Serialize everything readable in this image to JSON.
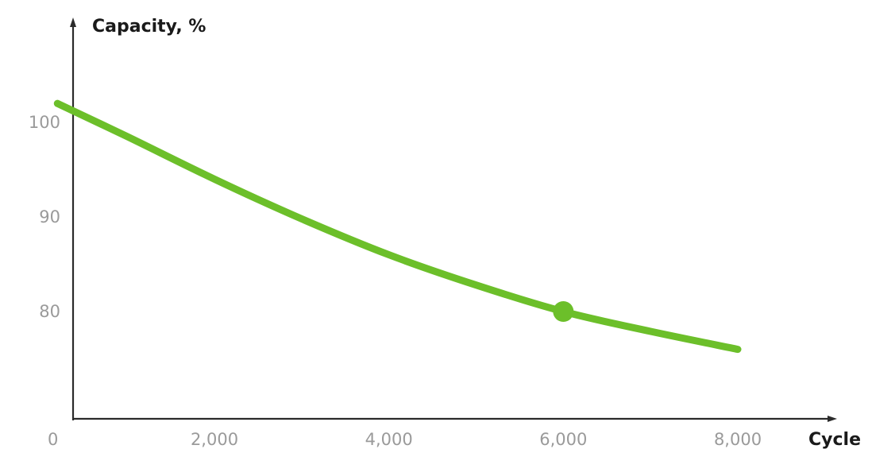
{
  "chart_data": {
    "type": "line",
    "xlabel": "Cycle",
    "ylabel": "Capacity, %",
    "origin_label": "0",
    "xlim": [
      0,
      9000
    ],
    "ylim": [
      69,
      111
    ],
    "x_ticks": [
      {
        "value": 2000,
        "label": "2,000"
      },
      {
        "value": 4000,
        "label": "4,000"
      },
      {
        "value": 6000,
        "label": "6,000"
      },
      {
        "value": 8000,
        "label": "8,000"
      }
    ],
    "y_ticks": [
      {
        "value": 80,
        "label": "80"
      },
      {
        "value": 90,
        "label": "90"
      },
      {
        "value": 100,
        "label": "100"
      }
    ],
    "grid": false,
    "series": [
      {
        "color": "#6cbf2a",
        "x": [
          200,
          1000,
          2000,
          3000,
          4000,
          5000,
          6000,
          7000,
          8000
        ],
        "y": [
          102.0,
          98.5,
          94.0,
          89.8,
          86.0,
          82.8,
          80.0,
          77.9,
          76.0
        ]
      }
    ],
    "markers": [
      {
        "x": 6000,
        "y": 80.0,
        "color": "#6cbf2a"
      }
    ]
  }
}
